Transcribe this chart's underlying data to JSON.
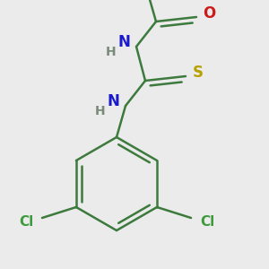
{
  "bg_color": "#ebebeb",
  "bond_color": "#3d7a3d",
  "bond_width": 1.8,
  "atom_colors": {
    "N": "#1a1acc",
    "H": "#7a8a7a",
    "O": "#cc1a1a",
    "S": "#b8a000",
    "Cl": "#3d9a3d",
    "C": "#000000"
  },
  "font_size_atom": 12,
  "font_size_H": 10,
  "font_size_Cl": 11
}
